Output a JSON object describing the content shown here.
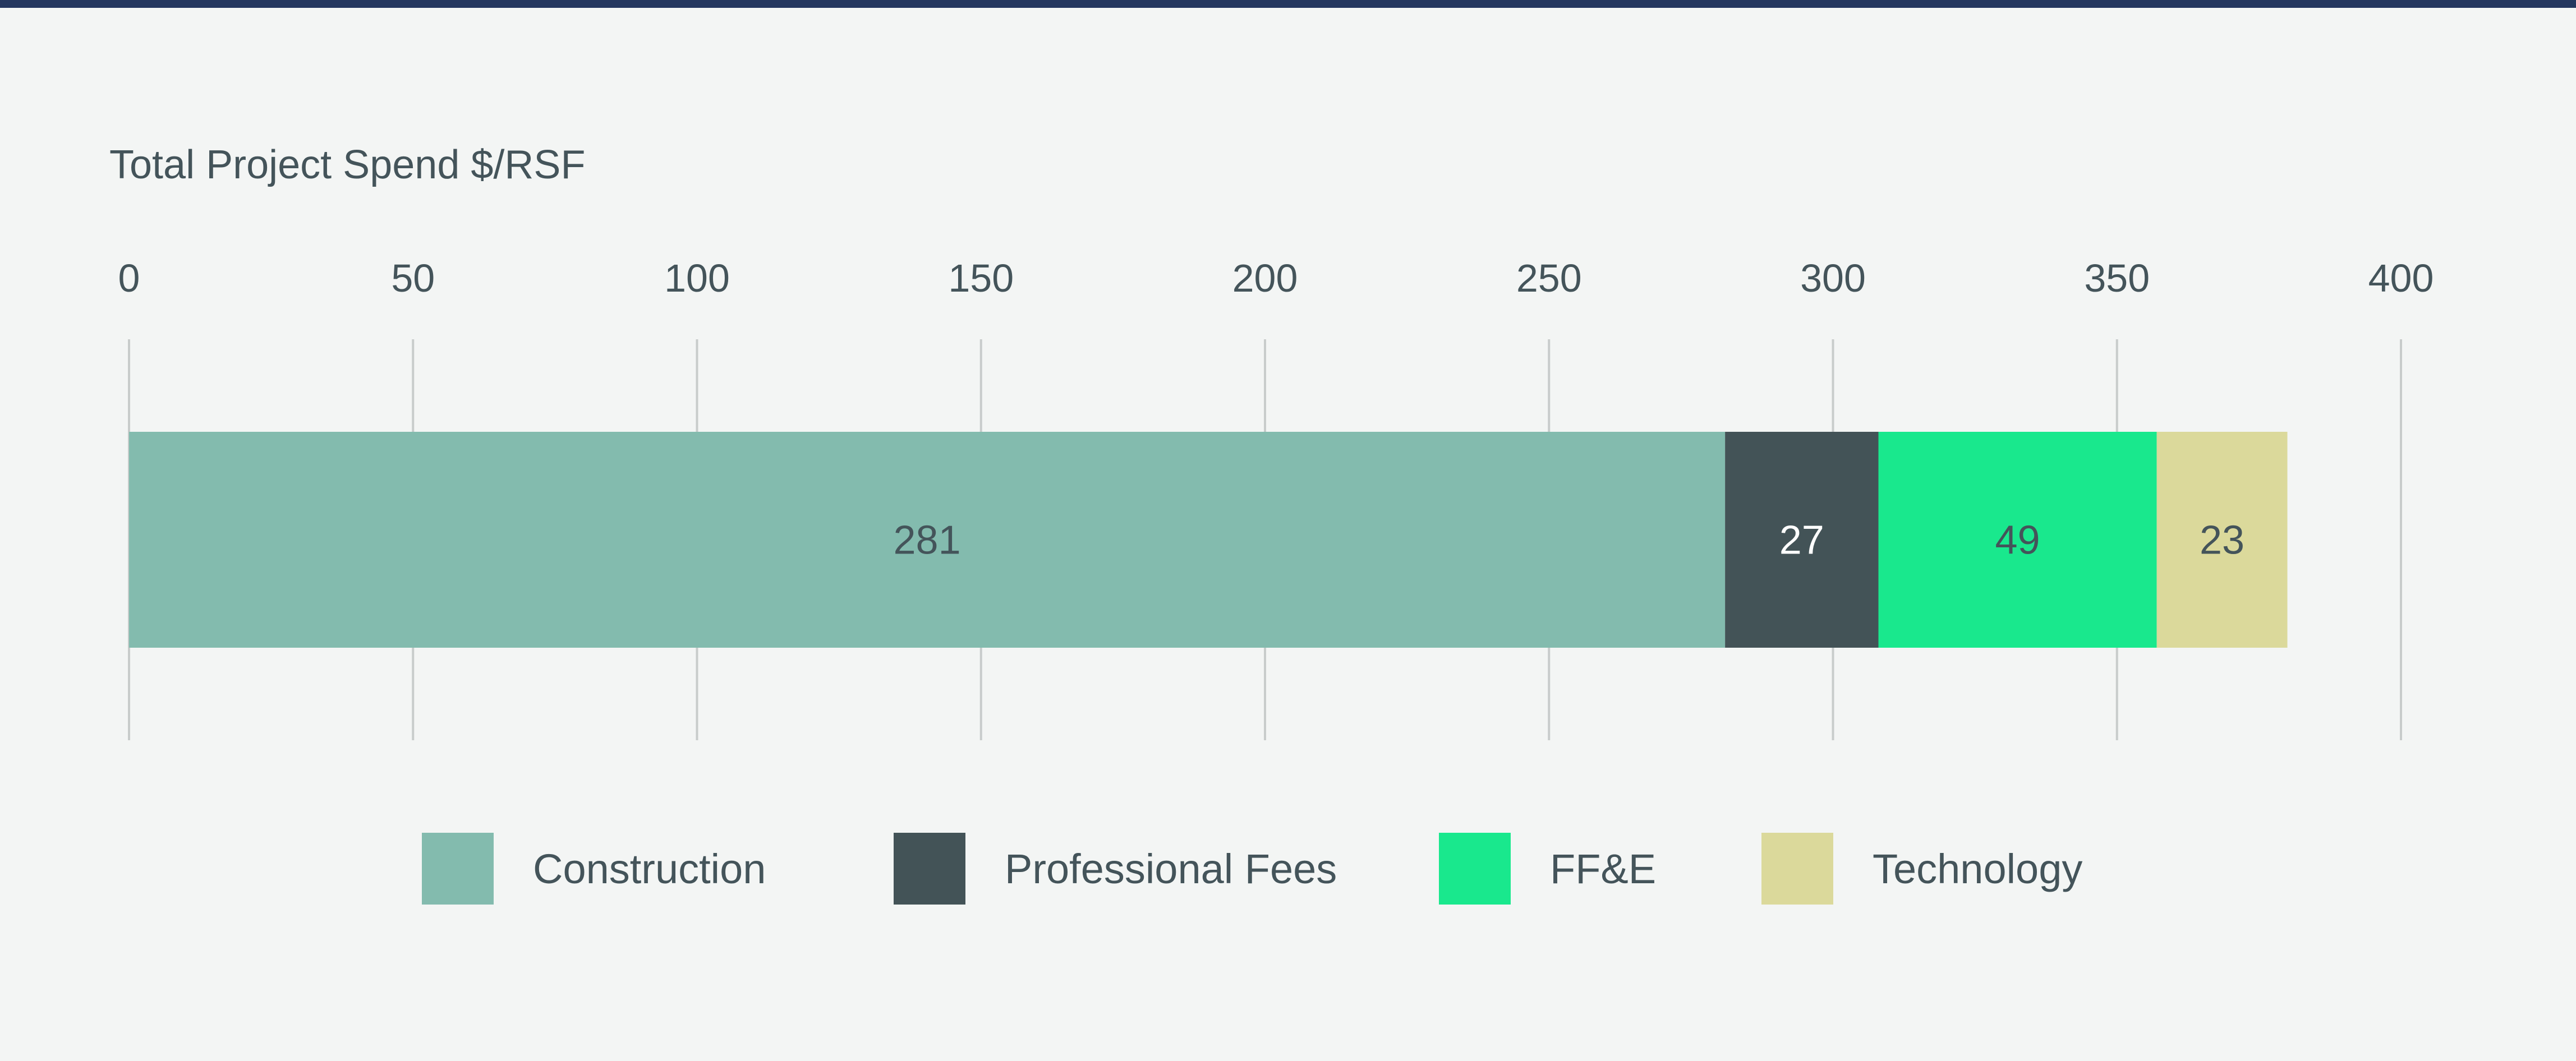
{
  "chart_data": {
    "type": "bar",
    "orientation": "horizontal",
    "stacked": true,
    "title": "Total Project Spend $/RSF",
    "xlim": [
      0,
      400
    ],
    "x_ticks": [
      0,
      50,
      100,
      150,
      200,
      250,
      300,
      350,
      400
    ],
    "grid": true,
    "legend_position": "bottom",
    "series": [
      {
        "name": "Construction",
        "value": 281,
        "label": "281",
        "color": "#83bbae",
        "label_color": "#44545a"
      },
      {
        "name": "Professional Fees",
        "value": 27,
        "label": "27",
        "color": "#435357",
        "label_color": "#ffffff"
      },
      {
        "name": "FF&E",
        "value": 49,
        "label": "49",
        "color": "#19e88d",
        "label_color": "#44545a"
      },
      {
        "name": "Technology",
        "value": 23,
        "label": "23",
        "color": "#dbd99b",
        "label_color": "#44545a"
      }
    ]
  },
  "colors": {
    "background": "#f3f5f4",
    "top_rule": "#24375f",
    "text": "#44545a",
    "grid": "#c8cccb"
  }
}
